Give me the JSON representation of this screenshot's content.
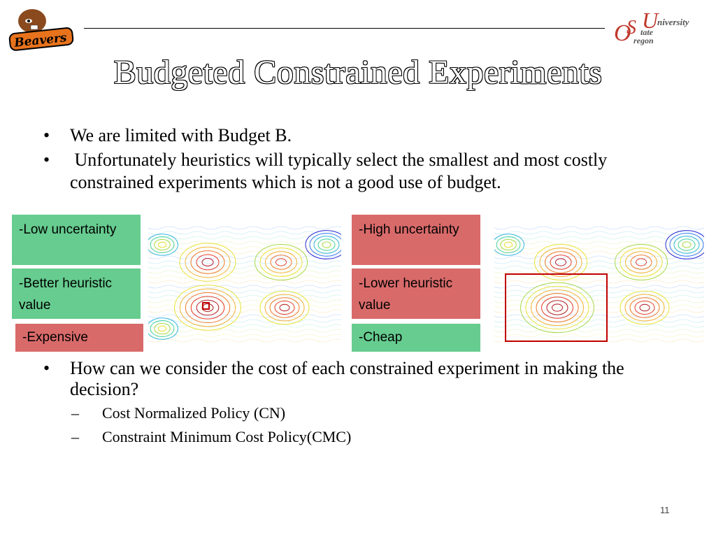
{
  "header": {
    "left_logo_text": "Beavers",
    "right_logo": {
      "letter_o": "O",
      "letter_s": "S",
      "letter_u": "U",
      "word_niversity": "niversity",
      "word_tate": "tate",
      "word_regon": "regon"
    }
  },
  "slide": {
    "title": "Budgeted Constrained Experiments",
    "bullets": [
      "We are limited with Budget B.",
      " Unfortunately heuristics will typically select the smallest and most costly constrained experiments which is not a good use of budget."
    ],
    "bullet_glyph": "•",
    "left_panel": {
      "boxes": [
        {
          "text": "-Low uncertainty",
          "color": "#66cc8f"
        },
        {
          "text": "-Better heuristic value",
          "color": "#66cc8f"
        },
        {
          "text": "-Expensive",
          "color": "#d96a6a"
        }
      ]
    },
    "right_panel": {
      "boxes": [
        {
          "text": "-High uncertainty",
          "color": "#d96a6a"
        },
        {
          "text": "-Lower heuristic value",
          "color": "#d96a6a"
        },
        {
          "text": "-Cheap",
          "color": "#66cc8f"
        }
      ]
    },
    "question": "How can we consider the cost of each constrained experiment in making the decision?",
    "sub_dash": "–",
    "sub_items": [
      "Cost Normalized Policy (CN)",
      "Constraint Minimum Cost Policy(CMC)"
    ],
    "page_number": "11"
  }
}
